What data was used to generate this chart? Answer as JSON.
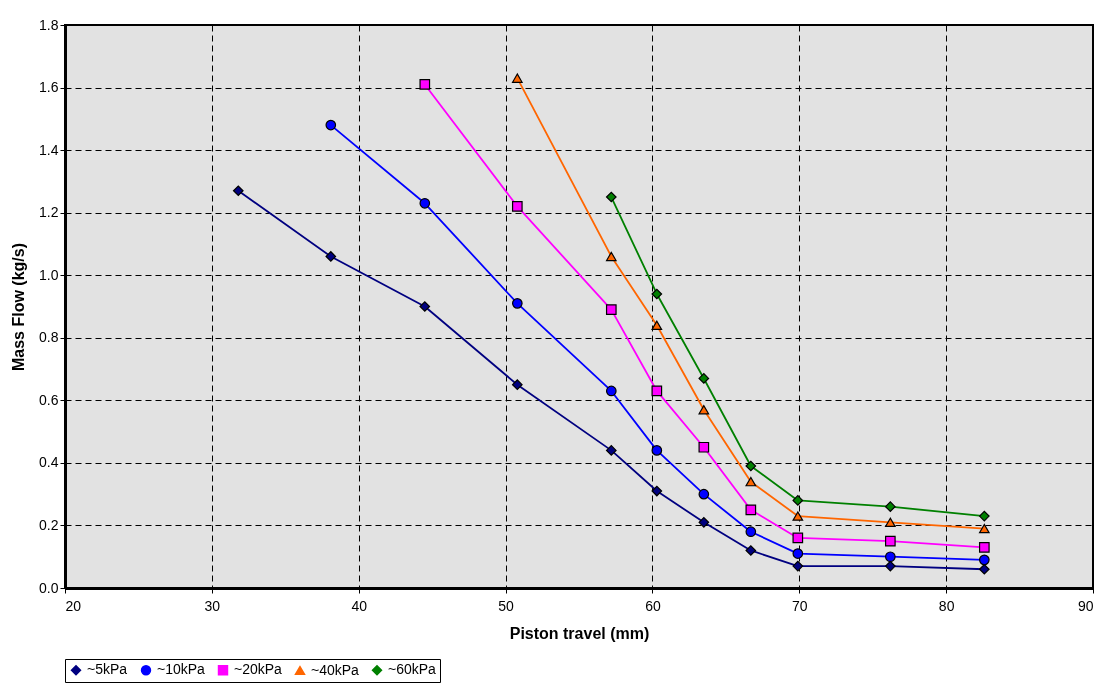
{
  "chart_data": {
    "type": "line",
    "xlabel": "Piston travel (mm)",
    "ylabel": "Mass Flow (kg/s)",
    "xlim": [
      20,
      90
    ],
    "xticks": [
      20,
      30,
      40,
      50,
      60,
      70,
      80,
      90
    ],
    "ylim": [
      0,
      1.8
    ],
    "yticks": [
      {
        "value": 0,
        "label": "0.0"
      },
      0.2,
      0.4,
      0.6,
      0.8,
      {
        "value": 1,
        "label": "1.0"
      },
      1.2,
      1.4,
      1.6,
      1.8
    ],
    "grid": true,
    "legend": "bottom",
    "line_style": "solid",
    "series": [
      {
        "name": "~5kPa",
        "color": "#000080",
        "marker": "diamond",
        "x": [
          31.8,
          38.1,
          44.5,
          50.8,
          57.2,
          60.3,
          63.5,
          66.7,
          69.9,
          76.2,
          82.6
        ],
        "values": [
          1.27,
          1.06,
          0.9,
          0.65,
          0.44,
          0.31,
          0.21,
          0.12,
          0.07,
          0.07,
          0.06
        ]
      },
      {
        "name": "~10kPa",
        "color": "#0000ff",
        "marker": "circle",
        "x": [
          38.1,
          44.5,
          50.8,
          57.2,
          60.3,
          63.5,
          66.7,
          69.9,
          76.2,
          82.6
        ],
        "values": [
          1.48,
          1.23,
          0.91,
          0.63,
          0.44,
          0.3,
          0.18,
          0.11,
          0.1,
          0.09
        ]
      },
      {
        "name": "~20kPa",
        "color": "#ff00ff",
        "marker": "square",
        "x": [
          44.5,
          50.8,
          57.2,
          60.3,
          63.5,
          66.7,
          69.9,
          76.2,
          82.6
        ],
        "values": [
          1.61,
          1.22,
          0.89,
          0.63,
          0.45,
          0.25,
          0.16,
          0.15,
          0.13
        ]
      },
      {
        "name": "~40kPa",
        "color": "#ff6600",
        "marker": "triangle",
        "x": [
          50.8,
          57.2,
          60.3,
          63.5,
          66.7,
          69.9,
          76.2,
          82.6
        ],
        "values": [
          1.63,
          1.06,
          0.84,
          0.57,
          0.34,
          0.23,
          0.21,
          0.19
        ]
      },
      {
        "name": "~60kPa",
        "color": "#008000",
        "marker": "diamond",
        "x": [
          57.2,
          60.3,
          63.5,
          66.7,
          69.9,
          76.2,
          82.6
        ],
        "values": [
          1.25,
          0.94,
          0.67,
          0.39,
          0.28,
          0.26,
          0.23
        ]
      }
    ]
  }
}
